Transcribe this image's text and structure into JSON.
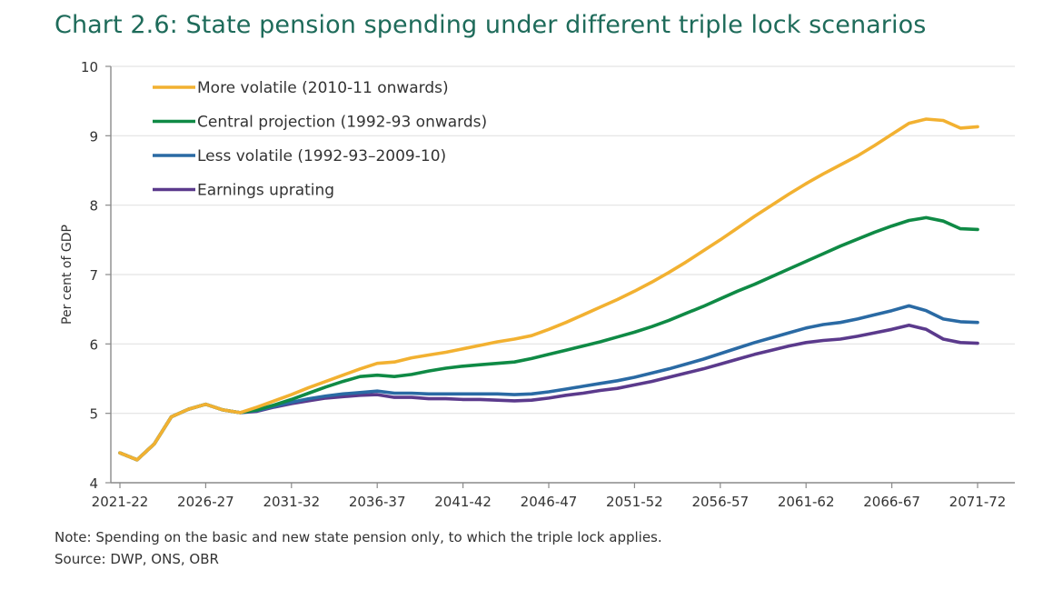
{
  "title": "Chart 2.6: State pension spending under different triple lock scenarios",
  "note": "Note: Spending on the basic and new state pension only, to which the triple lock applies.",
  "source": "Source: DWP, ONS, OBR",
  "chart_data": {
    "type": "line",
    "title": "Chart 2.6: State pension spending under different triple lock scenarios",
    "xlabel": "",
    "ylabel": "Per cent of GDP",
    "ylim": [
      4,
      10
    ],
    "yticks": [
      4,
      5,
      6,
      7,
      8,
      9,
      10
    ],
    "grid": true,
    "legend_position": "top-left",
    "x_start_year": 2021,
    "x_tick_labels": [
      "2021-22",
      "2026-27",
      "2031-32",
      "2036-37",
      "2041-42",
      "2046-47",
      "2051-52",
      "2056-57",
      "2061-62",
      "2066-67",
      "2071-72"
    ],
    "x": [
      "2021-22",
      "2022-23",
      "2023-24",
      "2024-25",
      "2025-26",
      "2026-27",
      "2027-28",
      "2028-29",
      "2029-30",
      "2030-31",
      "2031-32",
      "2032-33",
      "2033-34",
      "2034-35",
      "2035-36",
      "2036-37",
      "2037-38",
      "2038-39",
      "2039-40",
      "2040-41",
      "2041-42",
      "2042-43",
      "2043-44",
      "2044-45",
      "2045-46",
      "2046-47",
      "2047-48",
      "2048-49",
      "2049-50",
      "2050-51",
      "2051-52",
      "2052-53",
      "2053-54",
      "2054-55",
      "2055-56",
      "2056-57",
      "2057-58",
      "2058-59",
      "2059-60",
      "2060-61",
      "2061-62",
      "2062-63",
      "2063-64",
      "2064-65",
      "2065-66",
      "2066-67",
      "2067-68",
      "2068-69",
      "2069-70",
      "2070-71",
      "2071-72",
      "2072-73",
      "2073-74"
    ],
    "series": [
      {
        "name": "More volatile (2010-11 onwards)",
        "color": "#f2b131",
        "values": [
          4.43,
          4.33,
          4.56,
          4.95,
          5.06,
          5.13,
          5.05,
          5.01,
          5.09,
          5.18,
          5.27,
          5.37,
          5.46,
          5.55,
          5.64,
          5.72,
          5.74,
          5.8,
          5.84,
          5.88,
          5.93,
          5.98,
          6.03,
          6.07,
          6.12,
          6.21,
          6.31,
          6.42,
          6.53,
          6.64,
          6.76,
          6.89,
          7.03,
          7.18,
          7.34,
          7.5,
          7.67,
          7.84,
          8.0,
          8.16,
          8.31,
          8.45,
          8.58,
          8.71,
          8.86,
          9.02,
          9.18,
          9.24,
          9.22,
          9.11,
          9.13,
          null,
          null
        ]
      },
      {
        "name": "Central projection (1992-93 onwards)",
        "color": "#0f8a45",
        "values": [
          4.43,
          4.33,
          4.56,
          4.95,
          5.06,
          5.13,
          5.05,
          5.01,
          5.05,
          5.12,
          5.2,
          5.29,
          5.38,
          5.46,
          5.53,
          5.55,
          5.53,
          5.56,
          5.61,
          5.65,
          5.68,
          5.7,
          5.72,
          5.74,
          5.79,
          5.85,
          5.91,
          5.97,
          6.03,
          6.1,
          6.17,
          6.25,
          6.34,
          6.44,
          6.54,
          6.65,
          6.76,
          6.86,
          6.97,
          7.08,
          7.19,
          7.3,
          7.41,
          7.51,
          7.61,
          7.7,
          7.78,
          7.82,
          7.77,
          7.66,
          7.65,
          null,
          null
        ]
      },
      {
        "name": "Less volatile (1992-93–2009-10)",
        "color": "#2a6aa4",
        "values": [
          4.43,
          4.33,
          4.56,
          4.95,
          5.06,
          5.13,
          5.05,
          5.01,
          5.04,
          5.1,
          5.16,
          5.21,
          5.25,
          5.28,
          5.3,
          5.32,
          5.29,
          5.29,
          5.28,
          5.28,
          5.28,
          5.28,
          5.28,
          5.27,
          5.28,
          5.31,
          5.35,
          5.39,
          5.43,
          5.47,
          5.52,
          5.58,
          5.64,
          5.71,
          5.78,
          5.86,
          5.94,
          6.02,
          6.09,
          6.16,
          6.23,
          6.28,
          6.31,
          6.36,
          6.42,
          6.48,
          6.55,
          6.48,
          6.36,
          6.32,
          6.31,
          null,
          null
        ]
      },
      {
        "name": "Earnings uprating",
        "color": "#5b3a8c",
        "values": [
          4.43,
          4.33,
          4.56,
          4.95,
          5.06,
          5.13,
          5.05,
          5.01,
          5.03,
          5.09,
          5.14,
          5.18,
          5.22,
          5.24,
          5.26,
          5.27,
          5.23,
          5.23,
          5.21,
          5.21,
          5.2,
          5.2,
          5.19,
          5.18,
          5.19,
          5.22,
          5.26,
          5.29,
          5.33,
          5.36,
          5.41,
          5.46,
          5.52,
          5.58,
          5.64,
          5.71,
          5.78,
          5.85,
          5.91,
          5.97,
          6.02,
          6.05,
          6.07,
          6.11,
          6.16,
          6.21,
          6.27,
          6.21,
          6.07,
          6.02,
          6.01,
          null,
          null
        ]
      }
    ]
  }
}
